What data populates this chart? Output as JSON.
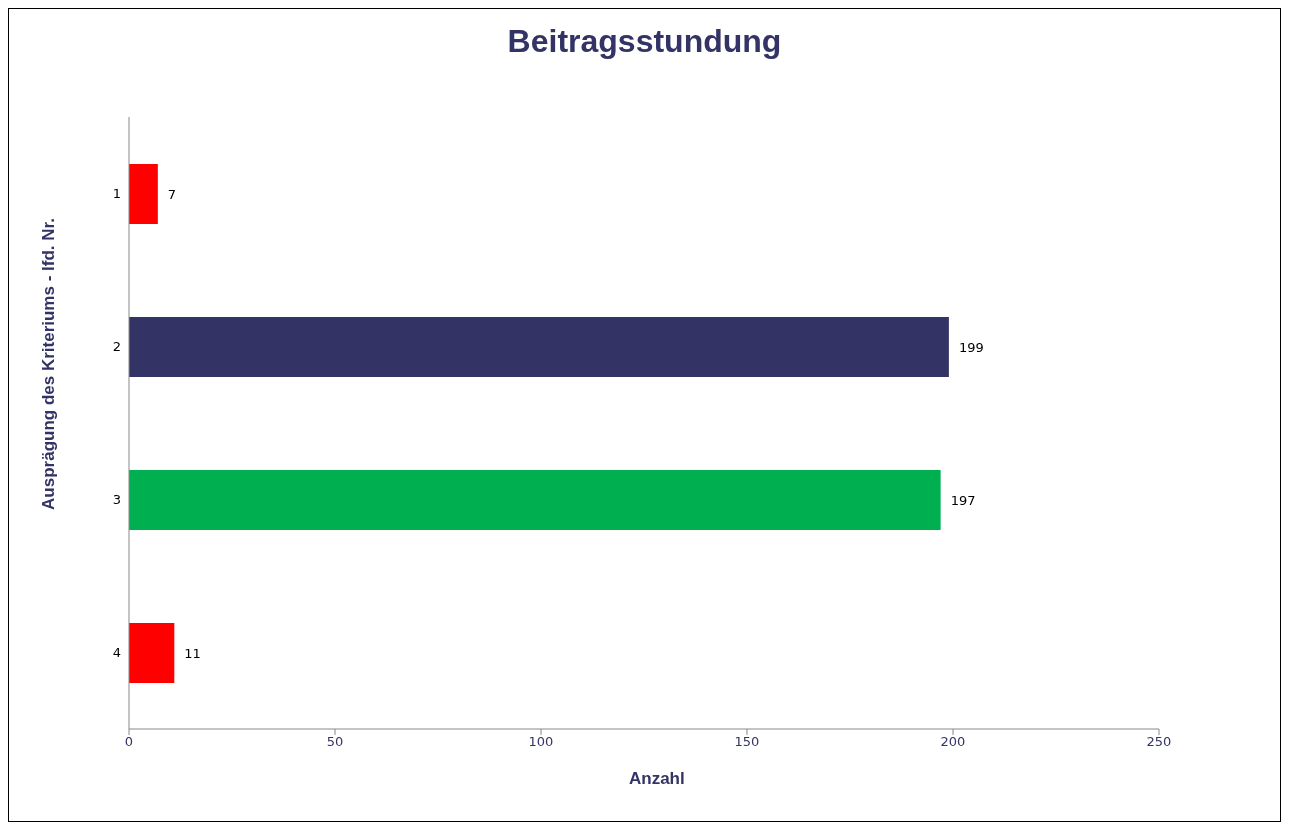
{
  "chart_data": {
    "type": "bar",
    "orientation": "horizontal",
    "title": "Beitragsstundung",
    "xlabel": "Anzahl",
    "ylabel": "Ausprägung des Kriteriums - lfd. Nr.",
    "categories": [
      "1",
      "2",
      "3",
      "4"
    ],
    "values": [
      7,
      199,
      197,
      11
    ],
    "colors": [
      "#ff0000",
      "#333366",
      "#00b050",
      "#ff0000"
    ],
    "xlim": [
      0,
      250
    ],
    "xticks": [
      0,
      50,
      100,
      150,
      200,
      250
    ],
    "data_labels": true
  }
}
